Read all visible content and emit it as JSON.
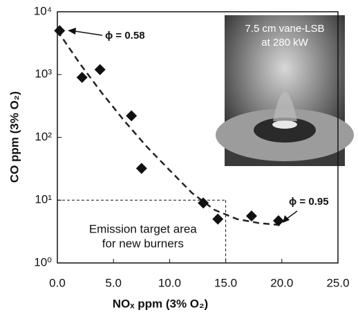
{
  "chart_data": {
    "type": "scatter",
    "x_label": "NOₓ ppm (3% O₂)",
    "y_label": "CO ppm (3% O₂)",
    "log_y": true,
    "xlim": [
      0,
      25
    ],
    "xticks": [
      {
        "value": 0,
        "label": "0.0"
      },
      {
        "value": 5,
        "label": "5.0"
      },
      {
        "value": 10,
        "label": "10.0"
      },
      {
        "value": 15,
        "label": "15.0"
      },
      {
        "value": 20,
        "label": "20.0"
      },
      {
        "value": 25,
        "label": "25.0"
      }
    ],
    "ylim": [
      1,
      10000
    ],
    "yticks": [
      {
        "value": 1,
        "label": "10⁰"
      },
      {
        "value": 10,
        "label": "10¹"
      },
      {
        "value": 100,
        "label": "10²"
      },
      {
        "value": 1000,
        "label": "10³"
      },
      {
        "value": 10000,
        "label": "10⁴"
      }
    ],
    "points": {
      "color": "#111111",
      "x": [
        0.2,
        2.2,
        3.8,
        6.6,
        7.5,
        13.0,
        14.3,
        17.3,
        19.7
      ],
      "values": [
        5000,
        900,
        1200,
        220,
        32,
        9,
        5,
        5.6,
        4.7
      ]
    },
    "fit": {
      "color": "#222222",
      "x": [
        0,
        2,
        4,
        6,
        8,
        10,
        12,
        14,
        16,
        18,
        20
      ],
      "values": [
        5000,
        1500,
        500,
        180,
        70,
        30,
        13,
        7,
        5,
        4.3,
        4.0
      ]
    },
    "target": {
      "x": 15,
      "y": 10,
      "label": [
        "Emission target area",
        "for new burners"
      ]
    },
    "annotations": [
      {
        "text": "ϕ = 0.58"
      },
      {
        "text": "ϕ = 0.95"
      }
    ],
    "inset": {
      "lines": [
        "7.5 cm vane-LSB",
        "at 280 kW"
      ]
    }
  }
}
